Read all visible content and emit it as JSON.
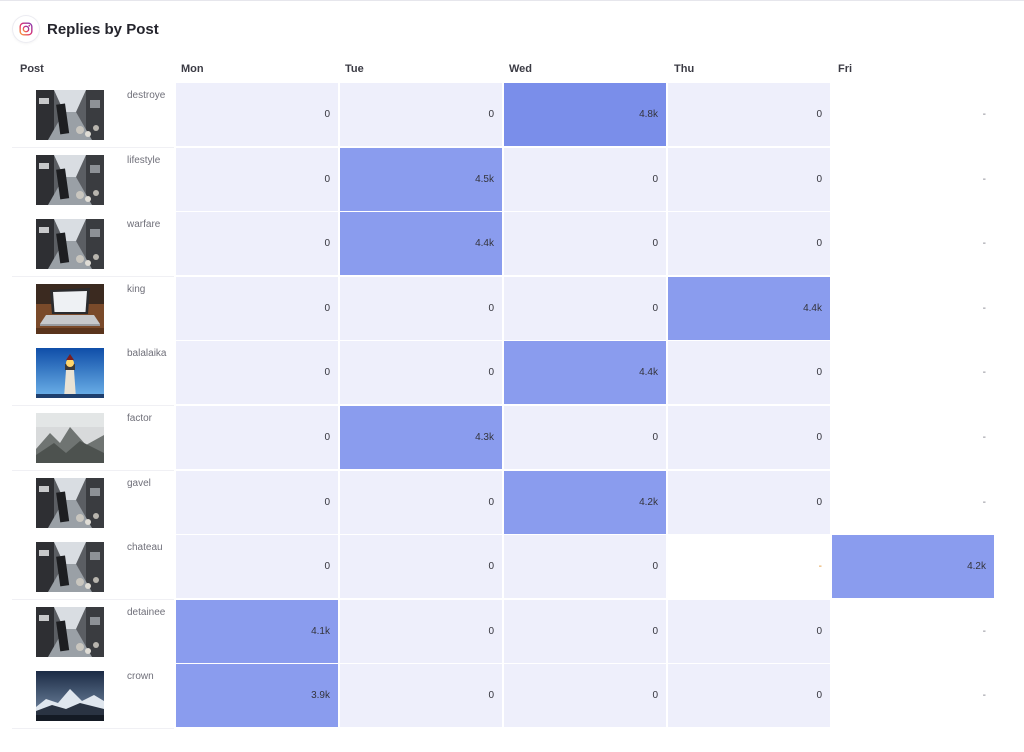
{
  "header": {
    "title": "Replies by Post",
    "icon": "instagram-icon"
  },
  "columns": {
    "post": "Post",
    "days": [
      "Mon",
      "Tue",
      "Wed",
      "Thu",
      "Fri"
    ]
  },
  "colors": {
    "cell_default": "#eeeffb",
    "cell_highlight": "#8a9cee",
    "cell_highlight_strong": "#7a8eea",
    "dash_orange": "#e0902a"
  },
  "rows": [
    {
      "post": "destroye",
      "thumb": "street-photo",
      "values": [
        "0",
        "0",
        "4.8k",
        "0",
        "-"
      ],
      "highlight": 2
    },
    {
      "post": "lifestyle",
      "thumb": "street-photo",
      "values": [
        "0",
        "4.5k",
        "0",
        "0",
        "-"
      ],
      "highlight": 1
    },
    {
      "post": "warfare",
      "thumb": "street-photo",
      "values": [
        "0",
        "4.4k",
        "0",
        "0",
        "-"
      ],
      "highlight": 1
    },
    {
      "post": "king",
      "thumb": "laptop-photo",
      "values": [
        "0",
        "0",
        "0",
        "4.4k",
        "-"
      ],
      "highlight": 3
    },
    {
      "post": "balalaika",
      "thumb": "lighthouse-photo",
      "values": [
        "0",
        "0",
        "4.4k",
        "0",
        "-"
      ],
      "highlight": 2
    },
    {
      "post": "factor",
      "thumb": "foggy-mountain-photo",
      "values": [
        "0",
        "4.3k",
        "0",
        "0",
        "-"
      ],
      "highlight": 1
    },
    {
      "post": "gavel",
      "thumb": "street-photo",
      "values": [
        "0",
        "0",
        "4.2k",
        "0",
        "-"
      ],
      "highlight": 2
    },
    {
      "post": "chateau",
      "thumb": "street-photo",
      "values": [
        "0",
        "0",
        "0",
        "-",
        "4.2k"
      ],
      "highlight": 4
    },
    {
      "post": "detainee",
      "thumb": "street-photo",
      "values": [
        "4.1k",
        "0",
        "0",
        "0",
        "-"
      ],
      "highlight": 0
    },
    {
      "post": "crown",
      "thumb": "night-mountain-photo",
      "values": [
        "3.9k",
        "0",
        "0",
        "0",
        "-"
      ],
      "highlight": 0
    }
  ]
}
